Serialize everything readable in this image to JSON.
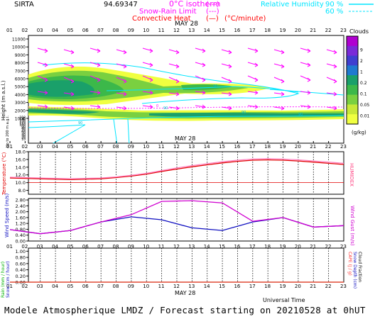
{
  "header": {
    "station": "SIRTA",
    "coord_text": "94.69347",
    "legend": [
      {
        "label": "0°C isotherm",
        "symbol": "(---)",
        "color": "#ff00ff"
      },
      {
        "label": "Snow-Rain Limit",
        "symbol": "(---)",
        "color": "#ff00ff"
      },
      {
        "label": "Convective Heat",
        "symbol": "(—)",
        "unit": "(°C/minute)",
        "color": "#ff0000"
      }
    ],
    "humidity": [
      {
        "label": "Relative Humidity",
        "value": "90 %",
        "color": "#00e5ff"
      },
      {
        "label": "",
        "value": "60 %",
        "color": "#00e5ff"
      }
    ]
  },
  "date_label": "MAY 28",
  "hours": [
    "01",
    "02",
    "03",
    "04",
    "05",
    "06",
    "07",
    "08",
    "09",
    "10",
    "11",
    "12",
    "13",
    "14",
    "15",
    "16",
    "17",
    "18",
    "19",
    "20",
    "21",
    "22",
    "23"
  ],
  "x_axis_title": "Universal Time",
  "footer": "Modele Atmospherique LMDZ / Forecast starting on 20210528 at 0hUT",
  "chart_data": [
    {
      "type": "heatmap",
      "title": "Clouds",
      "ylabel": "Height (m a.s.l.)",
      "ylabel_lower": "Up to 200 m a.g.l.",
      "y_ticks_upper": [
        1000,
        2000,
        3000,
        4000,
        5000,
        6000,
        7000,
        8000,
        9000,
        10000,
        11000
      ],
      "y_ticks_lower": [
        10,
        20,
        30,
        40,
        50,
        60,
        70,
        80,
        90,
        100,
        110,
        120,
        130,
        140,
        150
      ],
      "colorbar": {
        "label": "(g/kg)",
        "levels": [
          "9",
          "2",
          "1",
          "0.2",
          "0.1",
          "0.05",
          "0.01"
        ],
        "colors": [
          "#b000d0",
          "#7a2ad8",
          "#3f3fd0",
          "#1f7ad0",
          "#1aa06a",
          "#3cb84a",
          "#7ad040",
          "#c8e838",
          "#f0ff40"
        ]
      },
      "contour_labels": [
        "90",
        "90",
        "90",
        "90",
        "90",
        "0"
      ]
    },
    {
      "type": "line",
      "ylabel": "Temperature (°C)",
      "ylabel_right": "HUMIDEX",
      "yticks": [
        8.0,
        10.0,
        12.0,
        14.0,
        16.0,
        18.0
      ],
      "ylim": [
        7,
        18
      ],
      "x": [
        1,
        2,
        3,
        4,
        5,
        6,
        7,
        8,
        9,
        10,
        11,
        12,
        13,
        14,
        15,
        16,
        17,
        18,
        19,
        20,
        21,
        22,
        23
      ],
      "series": [
        {
          "color": "#e00000",
          "values": [
            11.2,
            11.1,
            11.0,
            10.9,
            10.8,
            10.9,
            11.0,
            11.3,
            11.7,
            12.2,
            12.9,
            13.5,
            14.1,
            14.6,
            15.1,
            15.5,
            15.8,
            15.9,
            15.8,
            15.6,
            15.3,
            15.0,
            14.7
          ]
        },
        {
          "color": "#ff80c0",
          "values": [
            11.4,
            11.3,
            11.2,
            11.1,
            11.0,
            11.1,
            11.2,
            11.5,
            11.9,
            12.4,
            13.1,
            13.8,
            14.4,
            14.9,
            15.4,
            15.8,
            16.1,
            16.2,
            16.1,
            15.9,
            15.6,
            15.3,
            15.0
          ]
        }
      ]
    },
    {
      "type": "line",
      "ylabel": "Wind Speed (m/s)",
      "ylabel_right": "Wind Gust (m/s)",
      "yticks": [
        0.0,
        0.4,
        0.8,
        1.2,
        1.6,
        2.0,
        2.4,
        2.8
      ],
      "ylim": [
        0,
        2.9
      ],
      "x": [
        1,
        3,
        5,
        7,
        9,
        11,
        13,
        15,
        17,
        19,
        21,
        23
      ],
      "series": [
        {
          "color": "#1010c0",
          "values": [
            0.78,
            0.5,
            0.72,
            1.3,
            1.65,
            1.45,
            0.9,
            0.72,
            1.3,
            1.6,
            0.95,
            1.05
          ]
        },
        {
          "color": "#d000d0",
          "values": [
            0.78,
            0.5,
            0.72,
            1.3,
            1.8,
            2.7,
            2.75,
            2.6,
            1.35,
            1.6,
            0.95,
            1.05
          ]
        }
      ]
    },
    {
      "type": "line",
      "ylabel": "Rain (mm / hour)",
      "ylabel_2": "Snow (cm / hour)",
      "ylabel_right": "CAPE (J / g)",
      "ylabel_right_2": "Snow Depth (cm)",
      "ylabel_right_3": "Cloud Fraction",
      "yticks": [
        0,
        0.2,
        0.4,
        0.6,
        0.8,
        1.0
      ],
      "ylim": [
        0,
        1.1
      ],
      "x": [
        1,
        23
      ],
      "series": [
        {
          "color": "#00b000",
          "values": [
            0,
            0
          ]
        },
        {
          "color": "#ff3030",
          "values": [
            0,
            0
          ]
        }
      ]
    }
  ]
}
